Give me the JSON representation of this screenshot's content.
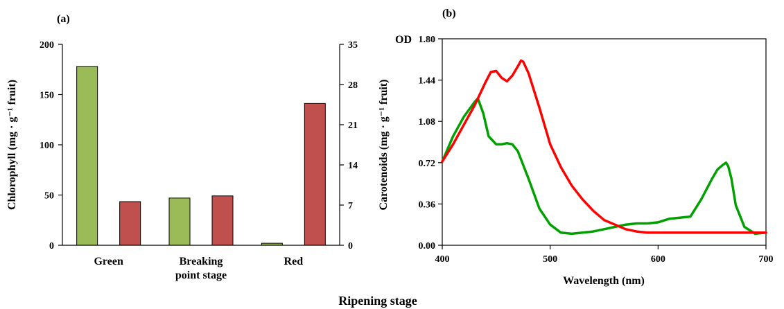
{
  "figure": {
    "shared_xlabel": "Ripening stage"
  },
  "chart_data": [
    {
      "type": "bar",
      "panel_label": "(a)",
      "categories": [
        [
          "Green"
        ],
        [
          "Breaking",
          "point stage"
        ],
        [
          "Red"
        ]
      ],
      "series": [
        {
          "axis": "left",
          "color": "#9bbb59",
          "values": [
            178,
            47,
            2
          ]
        },
        {
          "axis": "right",
          "color": "#c0504d",
          "values": [
            7.6,
            8.6,
            24.7
          ]
        }
      ],
      "ylabel_left": "Chlorophyll (mg · g⁻¹ fruit)",
      "ylabel_right": "Carotenoids (mg · g⁻¹ fruit)",
      "ylim_left": [
        0,
        200
      ],
      "ylim_right": [
        0,
        35
      ],
      "yticks_left": [
        "0",
        "50",
        "100",
        "150",
        "200"
      ],
      "yticks_right": [
        "0",
        "7",
        "14",
        "21",
        "28",
        "35"
      ],
      "grid": false
    },
    {
      "type": "line",
      "panel_label": "(b)",
      "ylabel": "OD",
      "xlabel": "Wavelength (nm)",
      "xlim": [
        400,
        700
      ],
      "ylim": [
        0,
        1.8
      ],
      "xticks": [
        "400",
        "500",
        "600",
        "700"
      ],
      "yticks": [
        "0.00",
        "0.36",
        "0.72",
        "1.08",
        "1.44",
        "1.80"
      ],
      "grid": false,
      "series": [
        {
          "color": "#00a000",
          "x": [
            400,
            410,
            420,
            430,
            433,
            438,
            443,
            445,
            450,
            455,
            460,
            465,
            470,
            480,
            490,
            500,
            510,
            520,
            530,
            540,
            550,
            560,
            570,
            580,
            590,
            600,
            610,
            620,
            630,
            640,
            650,
            655,
            660,
            663,
            665,
            668,
            672,
            680,
            690,
            700
          ],
          "y": [
            0.73,
            0.95,
            1.12,
            1.25,
            1.28,
            1.15,
            0.95,
            0.93,
            0.88,
            0.88,
            0.89,
            0.88,
            0.82,
            0.58,
            0.32,
            0.18,
            0.11,
            0.1,
            0.11,
            0.12,
            0.14,
            0.16,
            0.18,
            0.19,
            0.19,
            0.2,
            0.23,
            0.24,
            0.25,
            0.4,
            0.58,
            0.66,
            0.7,
            0.72,
            0.69,
            0.58,
            0.35,
            0.16,
            0.1,
            0.11
          ]
        },
        {
          "color": "#ff0000",
          "x": [
            400,
            410,
            420,
            430,
            440,
            445,
            450,
            455,
            460,
            465,
            470,
            473,
            475,
            480,
            490,
            500,
            510,
            520,
            530,
            540,
            550,
            560,
            570,
            580,
            590,
            600,
            620,
            640,
            660,
            680,
            700
          ],
          "y": [
            0.73,
            0.88,
            1.05,
            1.22,
            1.42,
            1.51,
            1.52,
            1.46,
            1.43,
            1.48,
            1.56,
            1.61,
            1.6,
            1.5,
            1.2,
            0.88,
            0.68,
            0.52,
            0.4,
            0.3,
            0.22,
            0.18,
            0.14,
            0.12,
            0.11,
            0.11,
            0.11,
            0.11,
            0.11,
            0.11,
            0.11
          ]
        }
      ]
    }
  ]
}
